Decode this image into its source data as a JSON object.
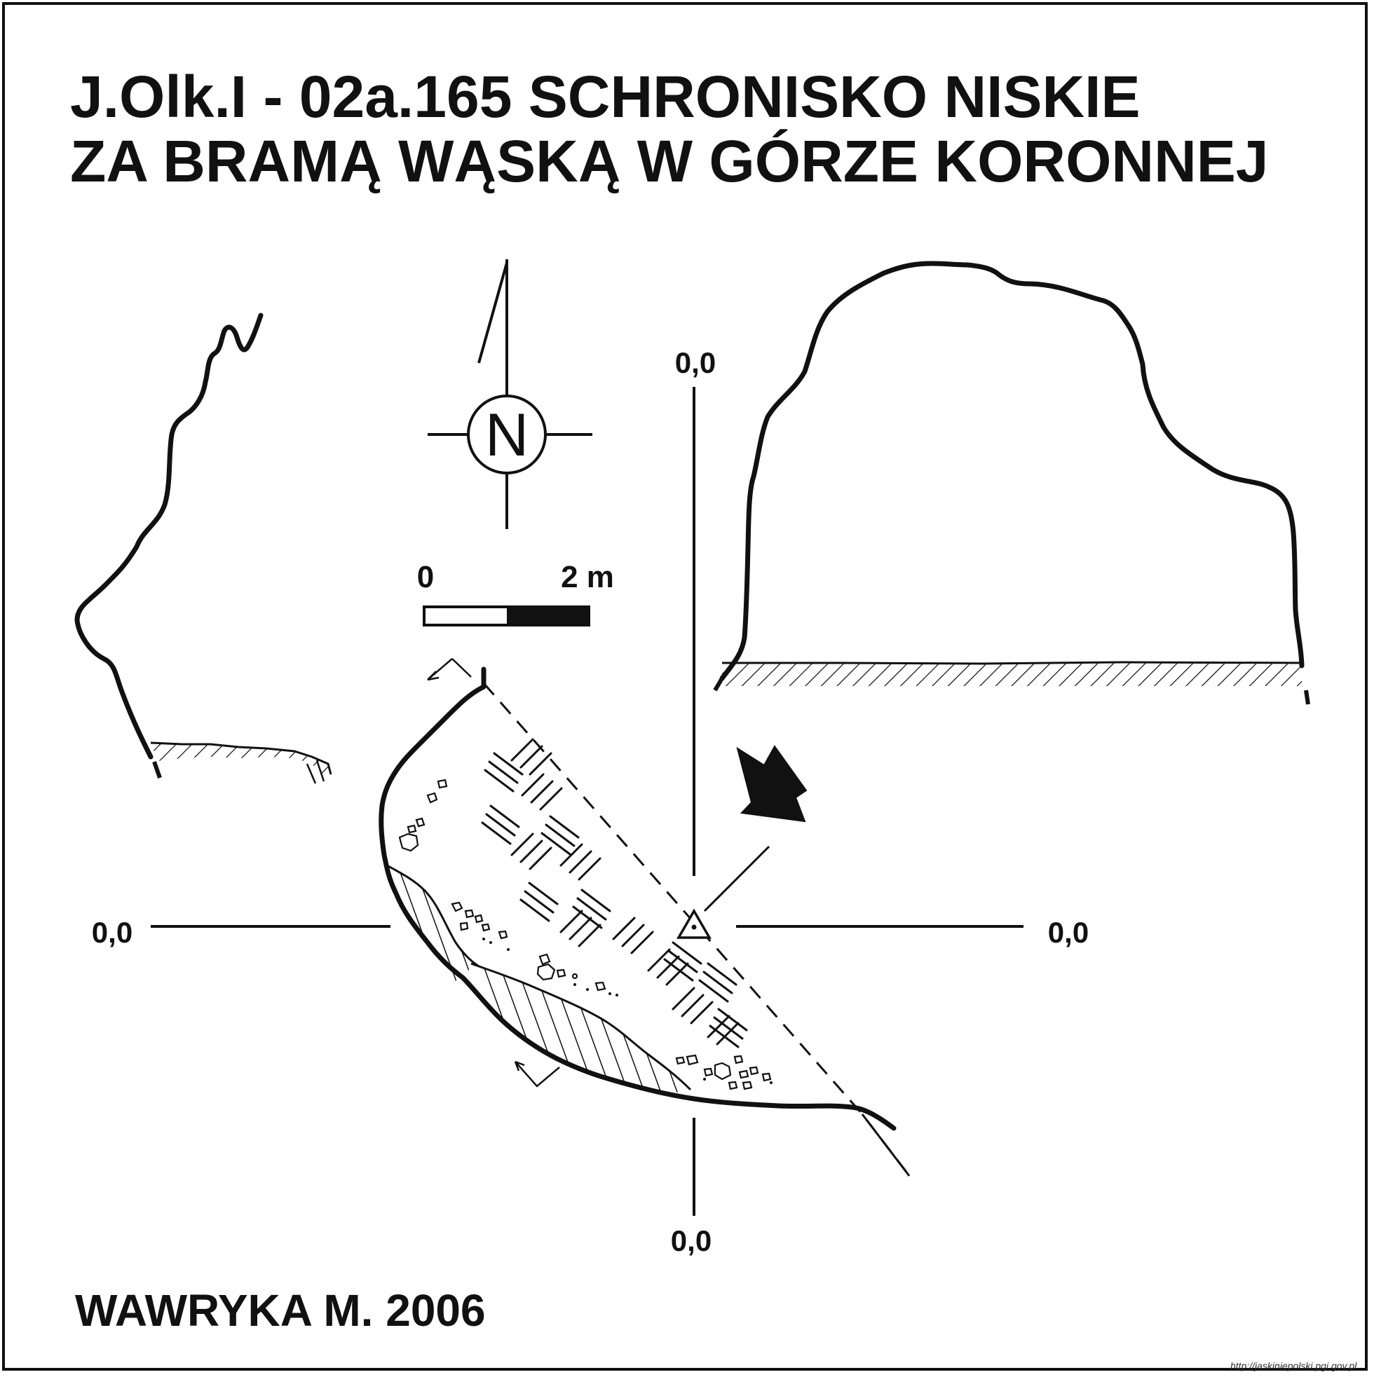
{
  "title": {
    "line1": "J.Olk.I - 02a.165  SCHRONISKO NISKIE",
    "line2": "ZA BRAMĄ WĄSKĄ W GÓRZE KORONNEJ"
  },
  "compass": {
    "letter": "N"
  },
  "scale_bar": {
    "start_label": "0",
    "end_label": "2 m"
  },
  "datum_labels": {
    "top": "0,0",
    "left": "0,0",
    "right": "0,0",
    "bottom": "0,0"
  },
  "author": "WAWRYKA M. 2006",
  "source_url": "http://jaskiniepolski.pgi.gov.pl",
  "colors": {
    "ink": "#111111",
    "paper": "#ffffff"
  }
}
